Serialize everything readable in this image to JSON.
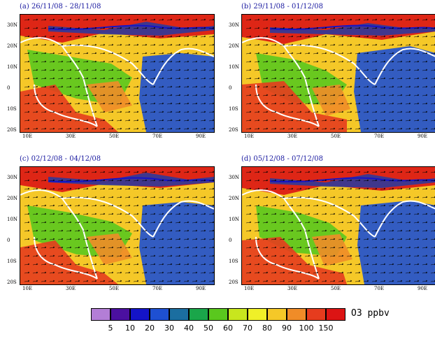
{
  "panels": [
    {
      "title": "(a) 26/11/08 - 28/11/08"
    },
    {
      "title": "(b) 29/11/08 - 01/12/08"
    },
    {
      "title": "(c) 02/12/08 - 04/12/08"
    },
    {
      "title": "(d) 05/12/08 - 07/12/08"
    }
  ],
  "axes": {
    "lat_ticks": [
      "30N",
      "20N",
      "10N",
      "0",
      "10S",
      "20S"
    ],
    "lon_ticks": [
      "10E",
      "30E",
      "50E",
      "70E",
      "90E"
    ]
  },
  "colorbar": {
    "labels": [
      "5",
      "10",
      "20",
      "30",
      "40",
      "50",
      "60",
      "70",
      "80",
      "90",
      "100",
      "150"
    ],
    "colors": [
      "#b37ed6",
      "#4b10a0",
      "#1414c8",
      "#1e50d2",
      "#1b6ea0",
      "#1aa64a",
      "#5ac81e",
      "#c8e61e",
      "#f0f028",
      "#f5c828",
      "#f08c28",
      "#e63c1e",
      "#dc1414"
    ],
    "units": "O3 ppbv"
  }
}
